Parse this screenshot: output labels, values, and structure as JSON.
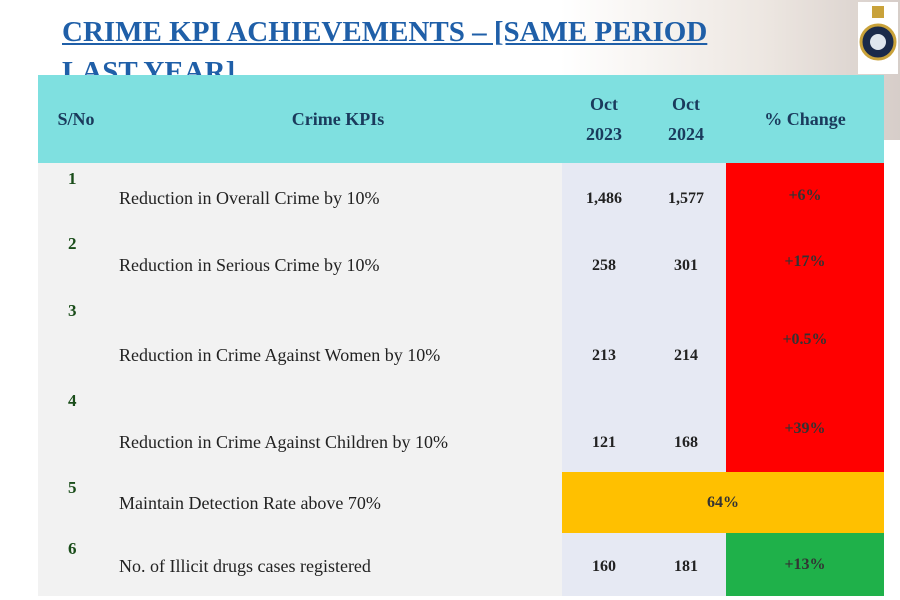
{
  "header": {
    "title": "CRIME KPI ACHIEVEMENTS – [SAME PERIOD LAST YEAR]"
  },
  "table": {
    "columns": [
      "S/No",
      "Crime KPIs",
      "Oct 2023",
      "Oct 2024",
      "% Change"
    ],
    "rows": [
      [
        "1",
        "Reduction in Overall Crime by 10%",
        "1,486",
        "1,577",
        "+6%"
      ],
      [
        "2",
        "Reduction in Serious Crime by 10%",
        "258",
        "301",
        "+17%"
      ],
      [
        "3",
        "Reduction in Crime Against Women by 10%",
        "213",
        "214",
        "+0.5%"
      ],
      [
        "4",
        "Reduction in Crime Against Children by 10%",
        "121",
        "168",
        "+39%"
      ],
      [
        "5",
        "Maintain Detection Rate above 70%",
        "64%"
      ],
      [
        "6",
        "No. of Illicit drugs cases registered",
        "160",
        "181",
        "+13%"
      ]
    ]
  }
}
